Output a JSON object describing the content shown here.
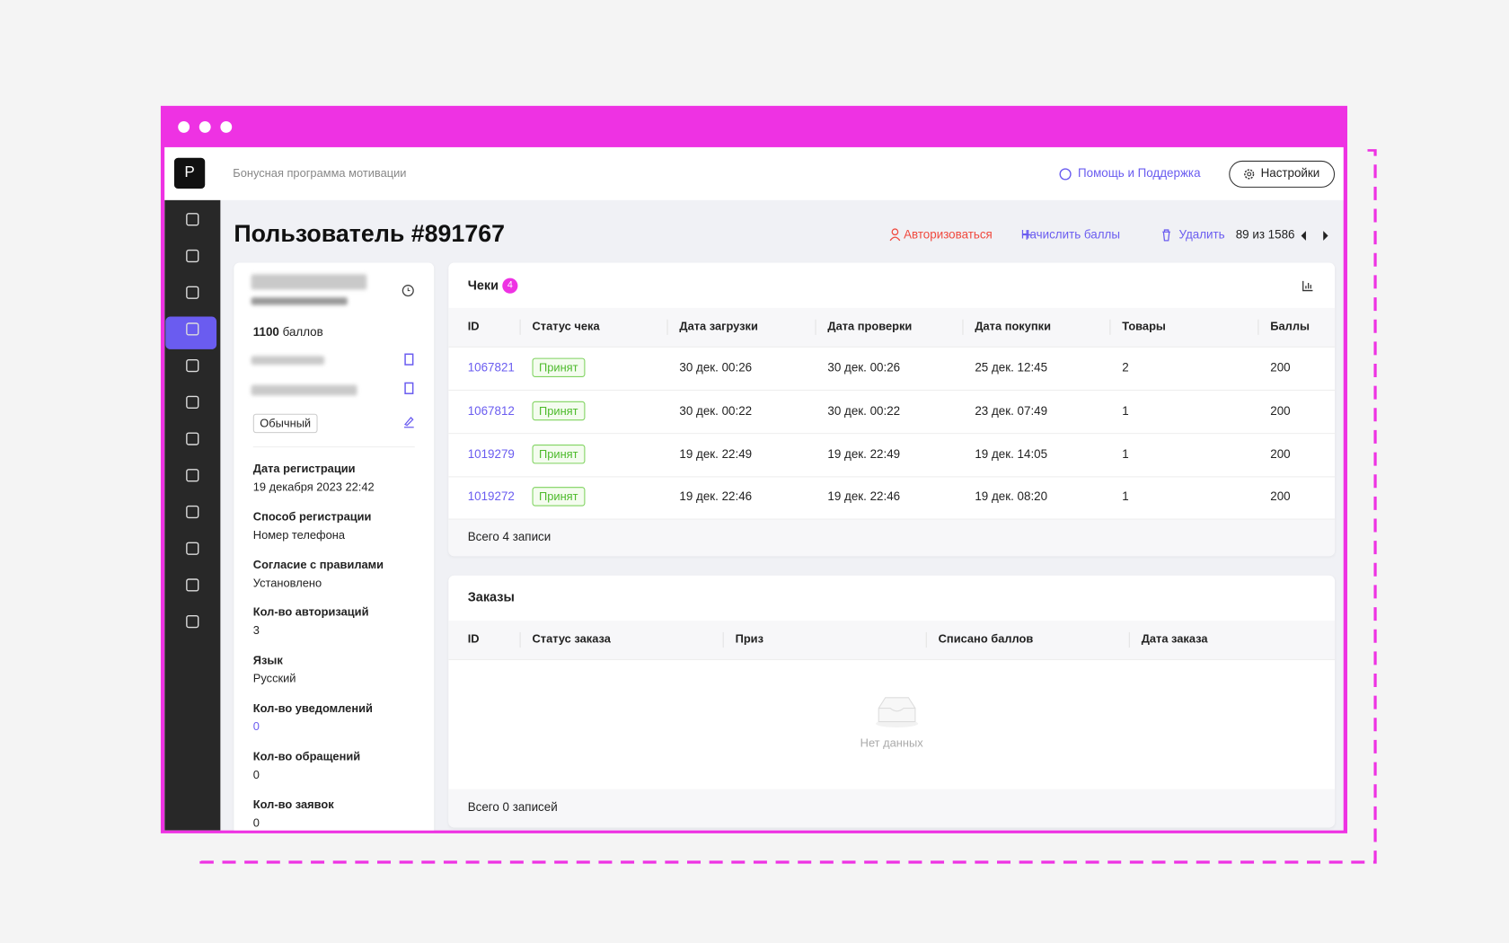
{
  "header": {
    "brand": "P",
    "subtitle": "Бонусная программа мотивации",
    "help": "Помощь и Поддержка",
    "settings": "Настройки"
  },
  "page": {
    "title": "Пользователь #891767",
    "actions": [
      "Авторизоваться",
      "Начислить баллы",
      "Удалить"
    ],
    "pager": "89 из 1586"
  },
  "profile": {
    "points": 1100,
    "points_unit": "баллов",
    "status": "Обычный",
    "fields": [
      {
        "label": "Дата регистрации",
        "value": "19 декабря 2023 22:42"
      },
      {
        "label": "Способ регистрации",
        "value": "Номер телефона"
      },
      {
        "label": "Согласие с правилами",
        "value": "Установлено"
      },
      {
        "label": "Кол-во авторизаций",
        "value": "3"
      },
      {
        "label": "Язык",
        "value": "Русский"
      },
      {
        "label": "Кол-во уведомлений",
        "value": "0"
      },
      {
        "label": "Кол-во обращений",
        "value": "0"
      },
      {
        "label": "Кол-во заявок",
        "value": "0"
      }
    ]
  },
  "receipts": {
    "title": "Чеки",
    "badge": 4,
    "columns": [
      "ID",
      "Статус чека",
      "Дата загрузки",
      "Дата проверки",
      "Дата покупки",
      "Товары",
      "Баллы"
    ],
    "rows": [
      [
        "1067821",
        "Принят",
        "30 дек. 00:26",
        "30 дек. 00:26",
        "25 дек. 12:45",
        "2",
        "200"
      ],
      [
        "1067812",
        "Принят",
        "30 дек. 00:22",
        "30 дек. 00:22",
        "23 дек. 07:49",
        "1",
        "200"
      ],
      [
        "1019279",
        "Принят",
        "19 дек. 22:49",
        "19 дек. 22:49",
        "19 дек. 14:05",
        "1",
        "200"
      ],
      [
        "1019272",
        "Принят",
        "19 дек. 22:46",
        "19 дек. 22:46",
        "19 дек. 08:20",
        "1",
        "200"
      ]
    ],
    "footer": "Всего 4 записи"
  },
  "orders": {
    "title": "Заказы",
    "columns": [
      "ID",
      "Статус заказа",
      "Приз",
      "Списано баллов",
      "Дата заказа"
    ],
    "empty": "Нет данных",
    "footer": "Всего 0 записей"
  }
}
